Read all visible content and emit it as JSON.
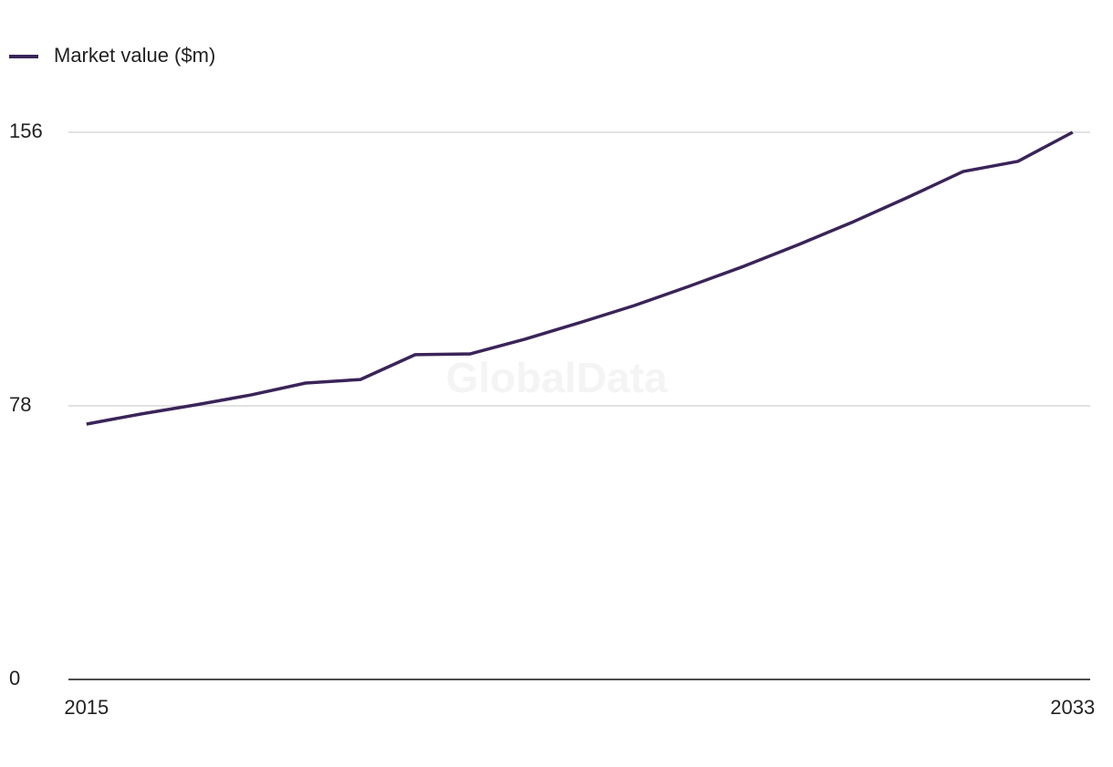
{
  "chart_data": {
    "type": "line",
    "x": [
      2015,
      2016,
      2017,
      2018,
      2019,
      2020,
      2021,
      2022,
      2023,
      2024,
      2025,
      2026,
      2027,
      2028,
      2029,
      2030,
      2031,
      2032,
      2033
    ],
    "series": [
      {
        "name": "Market value ($m)",
        "color": "#3a2458",
        "values": [
          72.8,
          75.7,
          78.3,
          81.1,
          84.5,
          85.5,
          92.6,
          92.8,
          97.0,
          101.7,
          106.6,
          112.1,
          117.8,
          124.0,
          130.5,
          137.5,
          144.8,
          147.7,
          156
        ]
      }
    ],
    "xlim": [
      2014.67,
      2033.32
    ],
    "xticks": [
      2015,
      2033
    ],
    "ylim": [
      0,
      156
    ],
    "yticks": [
      0,
      78,
      156
    ],
    "grid": true,
    "watermark": "GlobalData"
  }
}
